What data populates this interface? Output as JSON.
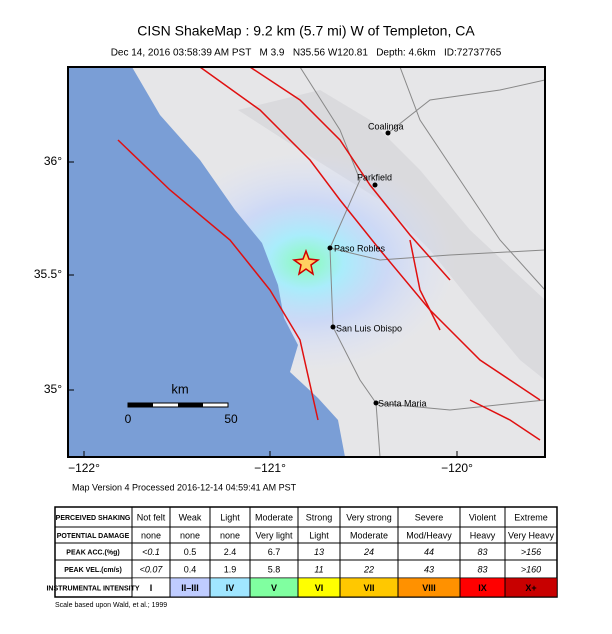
{
  "header": {
    "title": "CISN ShakeMap : 9.2 km (5.7 mi) W of Templeton, CA",
    "subtitle": "Dec 14, 2016 03:58:39 AM PST   M 3.9   N35.56 W120.81   Depth: 4.6km   ID:72737765"
  },
  "map": {
    "lat_labels": [
      "36°",
      "35.5°",
      "35°"
    ],
    "lon_labels": [
      "−122°",
      "−121°",
      "−120°"
    ],
    "places": [
      "Coalinga",
      "Parkfield",
      "Paso Robles",
      "San Luis Obispo",
      "Santa Maria"
    ],
    "scale": {
      "title": "km",
      "labels": [
        "0",
        "50"
      ]
    },
    "caption": "Map Version 4 Processed 2016-12-14 04:59:41 AM PST"
  },
  "table": {
    "row_labels": [
      "PERCEIVED SHAKING",
      "POTENTIAL DAMAGE",
      "PEAK ACC.(%g)",
      "PEAK VEL.(cm/s)",
      "INSTRUMENTAL INTENSITY"
    ],
    "rows": [
      [
        "Not felt",
        "Weak",
        "Light",
        "Moderate",
        "Strong",
        "Very strong",
        "Severe",
        "Violent",
        "Extreme"
      ],
      [
        "none",
        "none",
        "none",
        "Very light",
        "Light",
        "Moderate",
        "Mod/Heavy",
        "Heavy",
        "Very Heavy"
      ],
      [
        "<0.1",
        "0.5",
        "2.4",
        "6.7",
        "13",
        "24",
        "44",
        "83",
        ">156"
      ],
      [
        "<0.07",
        "0.4",
        "1.9",
        "5.8",
        "11",
        "22",
        "43",
        "83",
        ">160"
      ],
      [
        "I",
        "II–III",
        "IV",
        "V",
        "VI",
        "VII",
        "VIII",
        "IX",
        "X+"
      ]
    ],
    "intensity_colors": [
      "#ffffff",
      "#bfccff",
      "#a0e6ff",
      "#80ffa0",
      "#ffff00",
      "#ffc800",
      "#ff9100",
      "#ff0000",
      "#c80000"
    ]
  },
  "footnote": "Scale based upon Wald, et al.; 1999"
}
